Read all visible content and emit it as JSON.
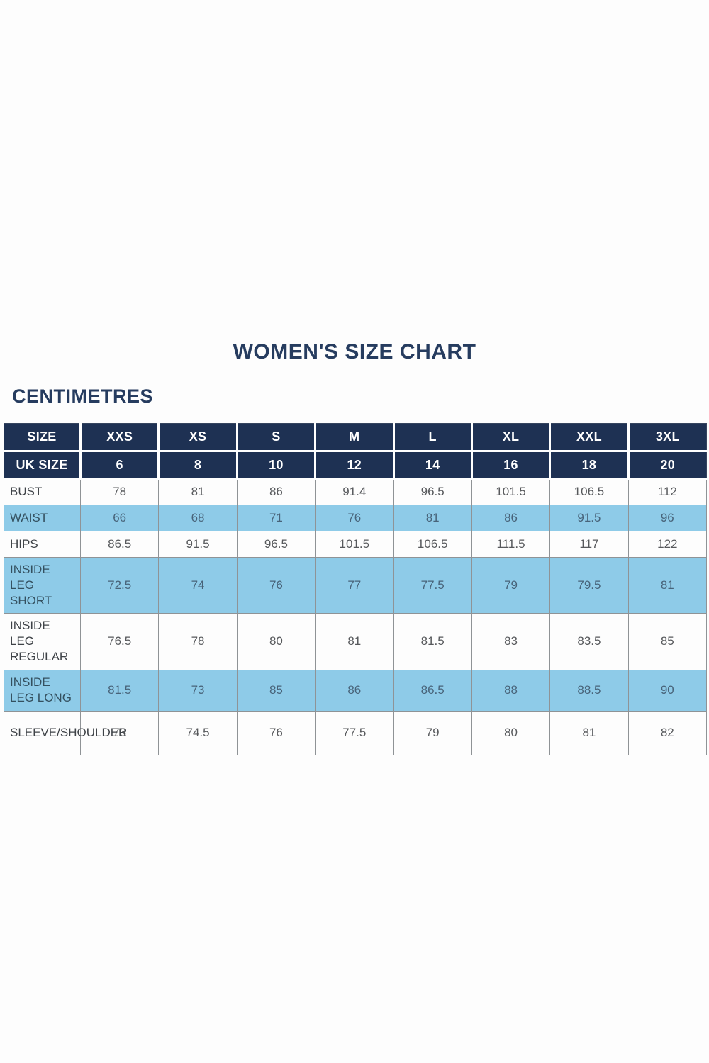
{
  "page": {
    "title": "WOMEN'S SIZE CHART",
    "unit_label": "CENTIMETRES"
  },
  "colors": {
    "header_navy": "#1e3153",
    "row_light_blue": "#8ecbe8",
    "row_white": "#fdfdfd",
    "title_text": "#263c5f",
    "border_gray": "#8f9396"
  },
  "chart_data": {
    "type": "table",
    "title": "WOMEN'S SIZE CHART",
    "unit": "CENTIMETRES",
    "header_rows": [
      {
        "label": "SIZE",
        "values": [
          "XXS",
          "XS",
          "S",
          "M",
          "L",
          "XL",
          "XXL",
          "3XL"
        ]
      },
      {
        "label": "UK SIZE",
        "values": [
          "6",
          "8",
          "10",
          "12",
          "14",
          "16",
          "18",
          "20"
        ]
      }
    ],
    "rows": [
      {
        "label": "BUST",
        "values": [
          "78",
          "81",
          "86",
          "91.4",
          "96.5",
          "101.5",
          "106.5",
          "112"
        ],
        "shaded": false,
        "tall": false
      },
      {
        "label": "WAIST",
        "values": [
          "66",
          "68",
          "71",
          "76",
          "81",
          "86",
          "91.5",
          "96"
        ],
        "shaded": true,
        "tall": false
      },
      {
        "label": "HIPS",
        "values": [
          "86.5",
          "91.5",
          "96.5",
          "101.5",
          "106.5",
          "111.5",
          "117",
          "122"
        ],
        "shaded": false,
        "tall": false
      },
      {
        "label": "INSIDE LEG SHORT",
        "values": [
          "72.5",
          "74",
          "76",
          "77",
          "77.5",
          "79",
          "79.5",
          "81"
        ],
        "shaded": true,
        "tall": true
      },
      {
        "label": "INSIDE LEG REGULAR",
        "values": [
          "76.5",
          "78",
          "80",
          "81",
          "81.5",
          "83",
          "83.5",
          "85"
        ],
        "shaded": false,
        "tall": true
      },
      {
        "label": "INSIDE LEG LONG",
        "values": [
          "81.5",
          "73",
          "85",
          "86",
          "86.5",
          "88",
          "88.5",
          "90"
        ],
        "shaded": true,
        "tall": true
      },
      {
        "label": "SLEEVE/SHOULDER",
        "values": [
          "73",
          "74.5",
          "76",
          "77.5",
          "79",
          "80",
          "81",
          "82"
        ],
        "shaded": false,
        "tall": "extra"
      }
    ]
  }
}
